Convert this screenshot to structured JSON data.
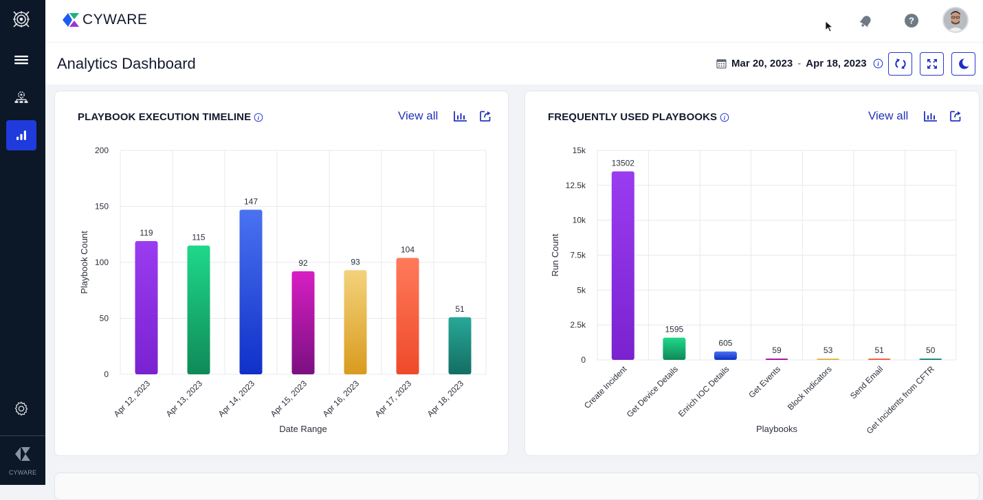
{
  "app": {
    "brand": "CYWARE",
    "sidebar_brand": "CYWARE"
  },
  "sidebar": {
    "items": [
      {
        "name": "orbit-logo",
        "icon": "orbit-icon"
      },
      {
        "name": "menu",
        "icon": "hamburger-icon"
      },
      {
        "name": "playbooks",
        "icon": "workflow-icon"
      },
      {
        "name": "analytics",
        "icon": "bar-chart-icon",
        "active": true
      },
      {
        "name": "settings",
        "icon": "gear-icon"
      }
    ]
  },
  "topbar": {
    "icons": [
      "bell-icon",
      "help-icon",
      "avatar"
    ]
  },
  "header": {
    "title": "Analytics Dashboard",
    "date_from": "Mar 20, 2023",
    "date_sep": "-",
    "date_to": "Apr 18, 2023",
    "buttons": [
      "refresh-icon",
      "fullscreen-icon",
      "dark-mode-icon"
    ]
  },
  "cards": [
    {
      "title": "PLAYBOOK EXECUTION TIMELINE",
      "view_all": "View all"
    },
    {
      "title": "FREQUENTLY USED PLAYBOOKS",
      "view_all": "View all"
    }
  ],
  "chart_data": [
    {
      "type": "bar",
      "title": "PLAYBOOK EXECUTION TIMELINE",
      "xlabel": "Date Range",
      "ylabel": "Playbook Count",
      "ylim": [
        0,
        200
      ],
      "yticks": [
        0,
        50,
        100,
        150,
        200
      ],
      "ytick_labels": [
        "0",
        "50",
        "100",
        "150",
        "200"
      ],
      "grid": true,
      "categories": [
        "Apr 12, 2023",
        "Apr 13, 2023",
        "Apr 14, 2023",
        "Apr 15, 2023",
        "Apr 16, 2023",
        "Apr 17, 2023",
        "Apr 18, 2023"
      ],
      "values": [
        119,
        115,
        147,
        92,
        93,
        104,
        51
      ],
      "colors": [
        [
          "#9a3cf0",
          "#7a22d0"
        ],
        [
          "#1fd88a",
          "#0f8a58"
        ],
        [
          "#4a72f0",
          "#1030c8"
        ],
        [
          "#d81ec4",
          "#7a1080"
        ],
        [
          "#f3d27c",
          "#d99b1e"
        ],
        [
          "#ff7a5a",
          "#ee4a2a"
        ],
        [
          "#28a898",
          "#136e62"
        ]
      ]
    },
    {
      "type": "bar",
      "title": "FREQUENTLY USED PLAYBOOKS",
      "xlabel": "Playbooks",
      "ylabel": "Run Count",
      "ylim": [
        0,
        15000
      ],
      "yticks": [
        0,
        2500,
        5000,
        7500,
        10000,
        12500,
        15000
      ],
      "ytick_labels": [
        "0",
        "2.5k",
        "5k",
        "7.5k",
        "10k",
        "12.5k",
        "15k"
      ],
      "grid": true,
      "categories": [
        "Create Incident",
        "Get Device Details",
        "Enrich IOC Details",
        "Get Events",
        "Block Indicators",
        "Send Email",
        "Get Incidents from CFTR"
      ],
      "values": [
        13502,
        1595,
        605,
        59,
        53,
        51,
        50
      ],
      "colors": [
        [
          "#9a3cf0",
          "#7a22d0"
        ],
        [
          "#1fd88a",
          "#0f8a58"
        ],
        [
          "#4a72f0",
          "#1030c8"
        ],
        [
          "#d81ec4",
          "#7a1080"
        ],
        [
          "#f3d27c",
          "#d99b1e"
        ],
        [
          "#ff7a5a",
          "#ee4a2a"
        ],
        [
          "#28a898",
          "#136e62"
        ]
      ]
    }
  ]
}
